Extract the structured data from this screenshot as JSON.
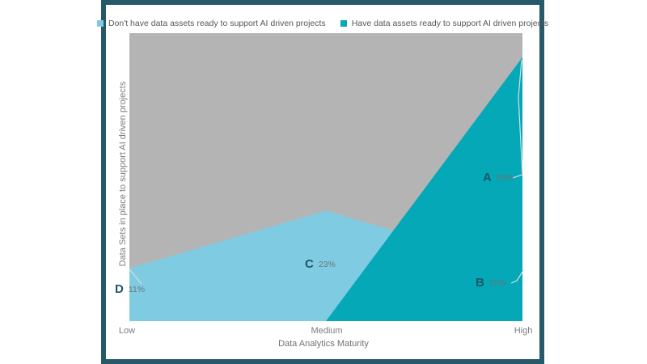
{
  "legend": {
    "items": [
      {
        "label": "Don't have data assets ready to support AI driven projects",
        "color": "#7FCBE2"
      },
      {
        "label": "Have data assets ready to support AI driven projects",
        "color": "#04A8B6"
      }
    ]
  },
  "axes": {
    "x_title": "Data Analytics Maturity",
    "y_title": "Data Sets in place to support AI driven projects",
    "x_ticks": [
      "Low",
      "Medium",
      "High"
    ]
  },
  "chart_data": {
    "type": "area",
    "categories": [
      "Low",
      "Medium",
      "High"
    ],
    "series": [
      {
        "name": "Don't have data assets ready to support AI driven projects",
        "values": [
          11,
          23,
          11
        ],
        "color": "#7FCBE2"
      },
      {
        "name": "Have data assets ready to support AI driven projects",
        "values": [
          0,
          0,
          55
        ],
        "color": "#04A8B6"
      }
    ],
    "ylim": [
      0,
      60
    ],
    "grid": "off",
    "legend_position": "top",
    "plot_background": "#B4B4B4",
    "annotations": [
      {
        "letter": "A",
        "value": "55%",
        "series": "Have data assets ready to support AI driven projects",
        "category": "High"
      },
      {
        "letter": "B",
        "value": "11%",
        "series": "Don't have data assets ready to support AI driven projects",
        "category": "High"
      },
      {
        "letter": "C",
        "value": "23%",
        "series": "Don't have data assets ready to support AI driven projects",
        "category": "Medium"
      },
      {
        "letter": "D",
        "value": "11%",
        "series": "Don't have data assets ready to support AI driven projects",
        "category": "Low"
      }
    ]
  },
  "colors": {
    "frame": "#26596A",
    "plot_background": "#B4B4B4",
    "annotation_letter": "#1F566B",
    "annotation_value": "#6E7476",
    "axis_text": "#7A7D80",
    "legend_text": "#575757",
    "leader_line": "#D8DDDE"
  }
}
